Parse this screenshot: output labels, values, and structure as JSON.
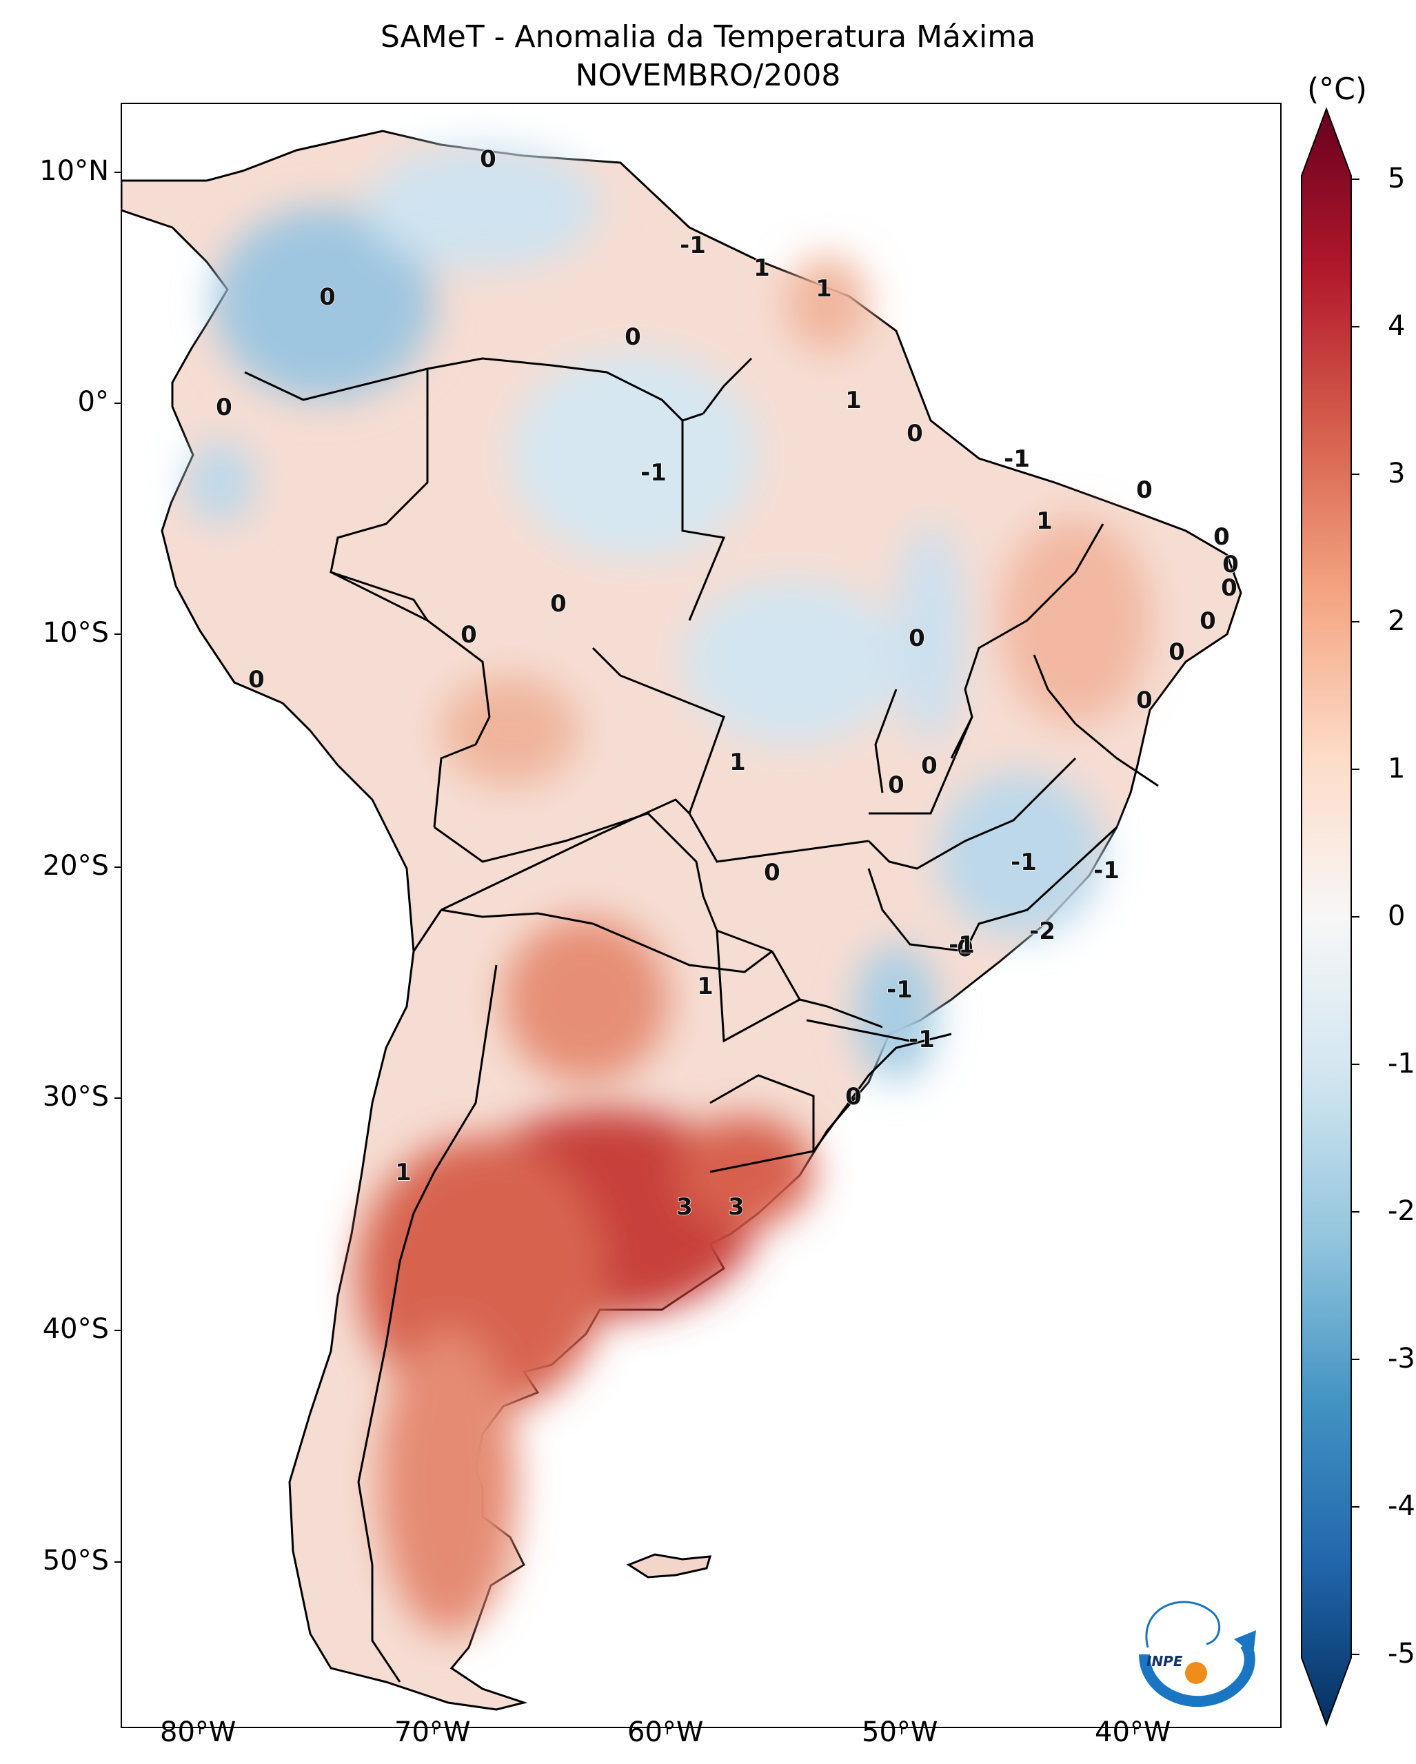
{
  "title": "SAMeT - Anomalia da Temperatura Máxima",
  "subtitle": "NOVEMBRO/2008",
  "colorbar": {
    "unit": "(°C)",
    "ticks": [
      "5",
      "4",
      "3",
      "2",
      "1",
      "0",
      "-1",
      "-2",
      "-3",
      "-4",
      "-5"
    ],
    "colors": [
      "#67001f",
      "#b2182b",
      "#d6604d",
      "#f4a582",
      "#fddbc7",
      "#f7f7f7",
      "#d1e5f0",
      "#92c5de",
      "#4393c3",
      "#2166ac",
      "#053061"
    ]
  },
  "axes": {
    "lat_labels": [
      "10°N",
      "0°",
      "10°S",
      "20°S",
      "30°S",
      "40°S",
      "50°S"
    ],
    "lon_labels": [
      "80°W",
      "70°W",
      "60°W",
      "50°W",
      "40°W"
    ]
  },
  "contour_labels": [
    "0",
    "-1",
    "0",
    "0",
    "1",
    "1",
    "0",
    "1",
    "0",
    "-1",
    "-1",
    "0",
    "1",
    "0",
    "0",
    "0",
    "0",
    "0",
    "0",
    "0",
    "0",
    "0",
    "0",
    "1",
    "0",
    "0",
    "0",
    "-1",
    "-1",
    "0",
    "1",
    "-1",
    "-2",
    "-1",
    "-1",
    "0",
    "3",
    "3",
    "1"
  ],
  "logo": {
    "text": "INPE"
  }
}
